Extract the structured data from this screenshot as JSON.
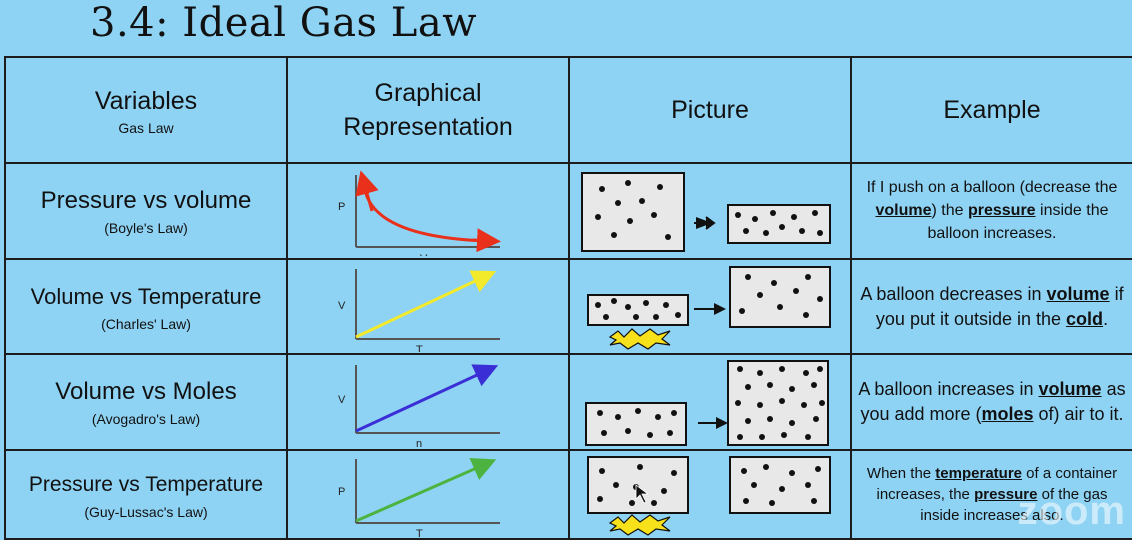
{
  "title": "3.4: Ideal Gas Law",
  "headers": {
    "variables": "Variables",
    "variables_sub": "Gas Law",
    "graphical_1": "Graphical",
    "graphical_2": "Representation",
    "picture": "Picture",
    "example": "Example"
  },
  "rows": [
    {
      "variables": "Pressure vs volume",
      "law": "(Boyle's Law)",
      "graph": {
        "y_label": "P",
        "x_label": "V",
        "color": "#e8301a",
        "shape": "inverse-curve"
      },
      "example": {
        "p1": "If I push on a balloon (decrease the ",
        "k1": "volume",
        "p2": ") the ",
        "k2": "pressure",
        "p3": " inside the balloon increases."
      }
    },
    {
      "variables": "Volume vs Temperature",
      "law": "(Charles' Law)",
      "graph": {
        "y_label": "V",
        "x_label": "T",
        "color": "#f2ea2a",
        "shape": "linear"
      },
      "example": {
        "p1": "A balloon decreases in ",
        "k1": "volume",
        "p2": " if you put it outside in the ",
        "k2": "cold",
        "p3": "."
      }
    },
    {
      "variables": "Volume vs Moles",
      "law": "(Avogadro's Law)",
      "graph": {
        "y_label": "V",
        "x_label": "n",
        "color": "#3a2fd6",
        "shape": "linear"
      },
      "example": {
        "p1": "A balloon increases in ",
        "k1": "volume",
        "p2": " as you add more (",
        "k2": "moles",
        "p3": " of) air to it."
      }
    },
    {
      "variables": "Pressure vs Temperature",
      "law": "(Guy-Lussac's Law)",
      "graph": {
        "y_label": "P",
        "x_label": "T",
        "color": "#4db340",
        "shape": "linear"
      },
      "example": {
        "p1": "When the ",
        "k1": "temperature",
        "p2": " of a container increases, the ",
        "k2": "pressure",
        "p3": " of the gas inside increases also."
      }
    }
  ],
  "watermark": "zoom",
  "colors": {
    "background": "#8fd3f4",
    "box_fill": "#e8e8e8",
    "flame": "#f7e11b"
  }
}
